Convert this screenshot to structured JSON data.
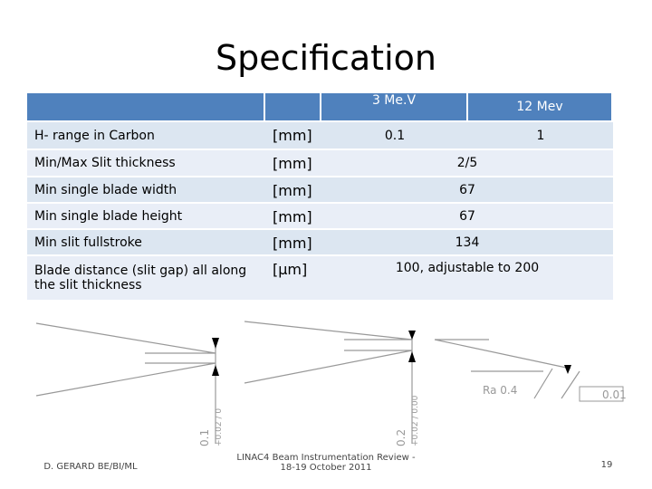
{
  "title": "Specification",
  "table": {
    "header": {
      "energy_low": "3 Me.V",
      "energy_high": "12 Mev"
    },
    "rows": [
      {
        "label": "H- range in Carbon",
        "unit": "[mm]",
        "values": [
          "0.1",
          "1"
        ]
      },
      {
        "label": "Min/Max Slit thickness",
        "unit": "[mm]",
        "value": "2/5"
      },
      {
        "label": "Min single blade width",
        "unit": "[mm]",
        "value": "67"
      },
      {
        "label": "Min single blade height",
        "unit": "[mm]",
        "value": "67"
      },
      {
        "label": "Min slit fullstroke",
        "unit": "[mm]",
        "value": "134"
      },
      {
        "label": "Blade distance (slit gap) all along the slit thickness",
        "unit": "[µm]",
        "value": "100, adjustable to 200"
      }
    ]
  },
  "drawing": {
    "dim_left": "0.1",
    "tol_left": "+0.02 / 0",
    "dim_mid": "0.2",
    "tol_mid": "+0.02 / 0.00",
    "roughness": "Ra 0.4",
    "flatness": "0.01"
  },
  "footer": {
    "author": "D. GERARD BE/BI/ML",
    "event": "LINAC4 Beam Instrumentation Review - 18-19 October 2011",
    "page": "19"
  }
}
